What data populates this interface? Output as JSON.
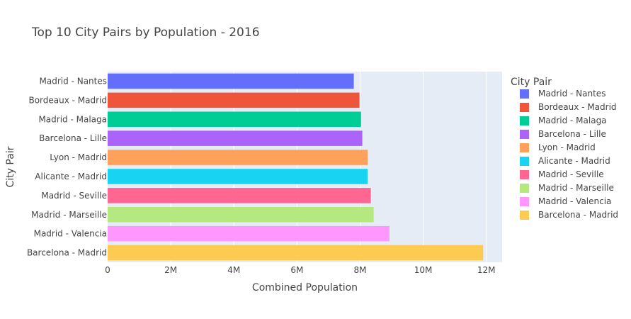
{
  "chart_data": {
    "type": "bar",
    "orientation": "horizontal",
    "title": "Top 10 City Pairs by Population - 2016",
    "xlabel": "Combined Population",
    "ylabel": "City Pair",
    "xlim": [
      0,
      12500000
    ],
    "x_ticks": [
      {
        "value": 0,
        "label": "0"
      },
      {
        "value": 2000000,
        "label": "2M"
      },
      {
        "value": 4000000,
        "label": "4M"
      },
      {
        "value": 6000000,
        "label": "6M"
      },
      {
        "value": 8000000,
        "label": "8M"
      },
      {
        "value": 10000000,
        "label": "10M"
      },
      {
        "value": 12000000,
        "label": "12M"
      }
    ],
    "grid": true,
    "legend": {
      "title": "City Pair",
      "placement": "right"
    },
    "bars": [
      {
        "category": "Madrid - Nantes",
        "value": 7800000,
        "color": "#636efa"
      },
      {
        "category": "Bordeaux - Madrid",
        "value": 7980000,
        "color": "#EF553B"
      },
      {
        "category": "Madrid - Malaga",
        "value": 8030000,
        "color": "#00cc96"
      },
      {
        "category": "Barcelona - Lille",
        "value": 8070000,
        "color": "#ab63fa"
      },
      {
        "category": "Lyon - Madrid",
        "value": 8240000,
        "color": "#FFA15A"
      },
      {
        "category": "Alicante - Madrid",
        "value": 8240000,
        "color": "#19d3f3"
      },
      {
        "category": "Madrid - Seville",
        "value": 8340000,
        "color": "#FF6692"
      },
      {
        "category": "Madrid - Marseille",
        "value": 8430000,
        "color": "#B6E880"
      },
      {
        "category": "Madrid - Valencia",
        "value": 8930000,
        "color": "#FF97FF"
      },
      {
        "category": "Barcelona - Madrid",
        "value": 11900000,
        "color": "#FECB52"
      }
    ]
  }
}
